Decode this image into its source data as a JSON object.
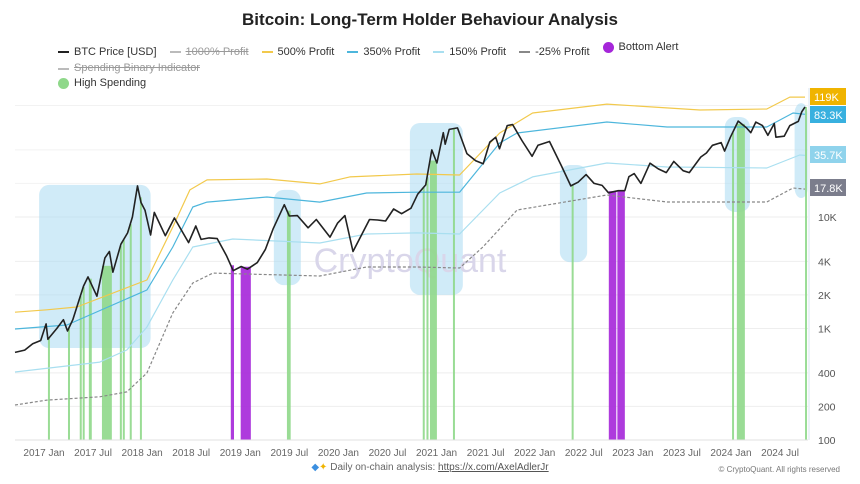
{
  "chart_data": {
    "type": "line",
    "title": "Bitcoin: Long-Term Holder Behaviour Analysis",
    "y_scale": "log",
    "ylim": [
      100,
      130000
    ],
    "xlim": [
      "2016-09-08",
      "2024-11-30"
    ],
    "grid": true,
    "legend_position": "top",
    "y_ticks": [
      {
        "v": 100,
        "label": "100"
      },
      {
        "v": 200,
        "label": "200"
      },
      {
        "v": 400,
        "label": "400"
      },
      {
        "v": 1000,
        "label": "1K"
      },
      {
        "v": 2000,
        "label": "2K"
      },
      {
        "v": 4000,
        "label": "4K"
      },
      {
        "v": 10000,
        "label": "10K"
      }
    ],
    "x_ticks": [
      "2017 Jan",
      "2017 Jul",
      "2018 Jan",
      "2018 Jul",
      "2019 Jan",
      "2019 Jul",
      "2020 Jan",
      "2020 Jul",
      "2021 Jan",
      "2021 Jul",
      "2022 Jan",
      "2022 Jul",
      "2023 Jan",
      "2023 Jul",
      "2024 Jan",
      "2024 Jul"
    ],
    "legend": [
      {
        "name": "BTC Price [USD]",
        "kind": "line",
        "color": "#222222",
        "hidden": false
      },
      {
        "name": "1000% Profit",
        "kind": "line",
        "color": "#bbbbbb",
        "hidden": true
      },
      {
        "name": "500% Profit",
        "kind": "line",
        "color": "#f2c94c",
        "hidden": false
      },
      {
        "name": "350% Profit",
        "kind": "line",
        "color": "#4db6dc",
        "hidden": false
      },
      {
        "name": "150% Profit",
        "kind": "line",
        "color": "#a9dff0",
        "hidden": false
      },
      {
        "name": "-25% Profit",
        "kind": "dash",
        "color": "#888888",
        "hidden": false
      },
      {
        "name": "Bottom Alert",
        "kind": "dot",
        "color": "#a526d9",
        "hidden": false
      },
      {
        "name": "Spending Binary Indicator",
        "kind": "line",
        "color": "#bbbbbb",
        "hidden": true
      },
      {
        "name": "High Spending",
        "kind": "dot",
        "color": "#8fd88a",
        "hidden": false
      }
    ],
    "series": [
      {
        "name": "BTC Price [USD]",
        "color": "#222222",
        "points": [
          [
            "2016-09-08",
            610
          ],
          [
            "2016-10-15",
            640
          ],
          [
            "2016-11-15",
            730
          ],
          [
            "2016-12-15",
            780
          ],
          [
            "2017-01-05",
            1100
          ],
          [
            "2017-01-12",
            800
          ],
          [
            "2017-02-15",
            1000
          ],
          [
            "2017-03-10",
            1200
          ],
          [
            "2017-03-25",
            950
          ],
          [
            "2017-04-15",
            1200
          ],
          [
            "2017-05-25",
            2400
          ],
          [
            "2017-06-12",
            2900
          ],
          [
            "2017-07-15",
            1950
          ],
          [
            "2017-08-15",
            4300
          ],
          [
            "2017-09-02",
            4900
          ],
          [
            "2017-09-15",
            3200
          ],
          [
            "2017-10-15",
            5700
          ],
          [
            "2017-11-10",
            7200
          ],
          [
            "2017-11-28",
            10000
          ],
          [
            "2017-12-17",
            19000
          ],
          [
            "2017-12-30",
            13500
          ],
          [
            "2018-01-15",
            11500
          ],
          [
            "2018-02-06",
            6900
          ],
          [
            "2018-02-20",
            11000
          ],
          [
            "2018-04-01",
            6800
          ],
          [
            "2018-05-05",
            9800
          ],
          [
            "2018-06-28",
            5900
          ],
          [
            "2018-07-25",
            8300
          ],
          [
            "2018-08-15",
            6300
          ],
          [
            "2018-09-15",
            6500
          ],
          [
            "2018-10-15",
            6400
          ],
          [
            "2018-11-20",
            4500
          ],
          [
            "2018-12-15",
            3300
          ],
          [
            "2019-01-15",
            3600
          ],
          [
            "2019-02-08",
            3400
          ],
          [
            "2019-03-15",
            3900
          ],
          [
            "2019-04-15",
            5100
          ],
          [
            "2019-05-15",
            7900
          ],
          [
            "2019-06-26",
            12900
          ],
          [
            "2019-07-15",
            10200
          ],
          [
            "2019-08-15",
            10300
          ],
          [
            "2019-09-25",
            8000
          ],
          [
            "2019-10-26",
            9500
          ],
          [
            "2019-12-17",
            6600
          ],
          [
            "2020-01-15",
            8800
          ],
          [
            "2020-02-13",
            10300
          ],
          [
            "2020-03-13",
            4900
          ],
          [
            "2020-04-15",
            6900
          ],
          [
            "2020-05-15",
            9500
          ],
          [
            "2020-06-15",
            9400
          ],
          [
            "2020-07-15",
            9200
          ],
          [
            "2020-08-15",
            11800
          ],
          [
            "2020-09-15",
            10700
          ],
          [
            "2020-10-20",
            12000
          ],
          [
            "2020-11-15",
            16000
          ],
          [
            "2020-12-15",
            19400
          ],
          [
            "2021-01-08",
            40000
          ],
          [
            "2021-01-27",
            30500
          ],
          [
            "2021-02-21",
            57000
          ],
          [
            "2021-02-28",
            45000
          ],
          [
            "2021-03-13",
            61000
          ],
          [
            "2021-04-14",
            63000
          ],
          [
            "2021-05-19",
            37000
          ],
          [
            "2021-06-22",
            32000
          ],
          [
            "2021-07-20",
            30000
          ],
          [
            "2021-08-15",
            47000
          ],
          [
            "2021-09-07",
            52000
          ],
          [
            "2021-09-21",
            41000
          ],
          [
            "2021-10-20",
            66000
          ],
          [
            "2021-11-10",
            67500
          ],
          [
            "2021-12-15",
            48500
          ],
          [
            "2022-01-23",
            35000
          ],
          [
            "2022-02-15",
            44000
          ],
          [
            "2022-03-28",
            47500
          ],
          [
            "2022-05-12",
            29000
          ],
          [
            "2022-06-18",
            19000
          ],
          [
            "2022-07-15",
            20500
          ],
          [
            "2022-08-15",
            24000
          ],
          [
            "2022-09-15",
            20000
          ],
          [
            "2022-10-15",
            19200
          ],
          [
            "2022-11-09",
            16500
          ],
          [
            "2022-12-15",
            17200
          ],
          [
            "2023-01-10",
            17200
          ],
          [
            "2023-01-25",
            23000
          ],
          [
            "2023-02-15",
            24500
          ],
          [
            "2023-03-10",
            20000
          ],
          [
            "2023-04-14",
            30400
          ],
          [
            "2023-05-15",
            27000
          ],
          [
            "2023-06-15",
            25000
          ],
          [
            "2023-07-13",
            31500
          ],
          [
            "2023-08-18",
            26000
          ],
          [
            "2023-09-11",
            25000
          ],
          [
            "2023-10-24",
            34500
          ],
          [
            "2023-11-15",
            37500
          ],
          [
            "2023-12-08",
            44000
          ],
          [
            "2024-01-10",
            46500
          ],
          [
            "2024-01-23",
            39000
          ],
          [
            "2024-02-15",
            52000
          ],
          [
            "2024-03-14",
            72500
          ],
          [
            "2024-04-15",
            63000
          ],
          [
            "2024-05-01",
            57000
          ],
          [
            "2024-05-20",
            71000
          ],
          [
            "2024-06-15",
            66000
          ],
          [
            "2024-07-05",
            54000
          ],
          [
            "2024-07-29",
            69000
          ],
          [
            "2024-08-05",
            52000
          ],
          [
            "2024-09-06",
            53000
          ],
          [
            "2024-09-27",
            66000
          ],
          [
            "2024-10-29",
            72000
          ],
          [
            "2024-11-12",
            88000
          ],
          [
            "2024-11-24",
            97000
          ]
        ]
      },
      {
        "name": "500% Profit",
        "color": "#f2c94c",
        "last_label": "119K",
        "points": [
          [
            "2016-09-08",
            1400
          ],
          [
            "2017-01-08",
            1470
          ],
          [
            "2017-04-30",
            1560
          ],
          [
            "2018-01-22",
            2720
          ],
          [
            "2018-04-29",
            8130
          ],
          [
            "2018-07-03",
            17500
          ],
          [
            "2018-09-07",
            21500
          ],
          [
            "2019-04-21",
            21900
          ],
          [
            "2019-11-09",
            19800
          ],
          [
            "2020-03-01",
            22900
          ],
          [
            "2020-11-12",
            24300
          ],
          [
            "2021-04-22",
            23800
          ],
          [
            "2021-09-22",
            56700
          ],
          [
            "2022-01-25",
            85700
          ],
          [
            "2022-11-03",
            103000
          ],
          [
            "2023-10-21",
            91200
          ],
          [
            "2024-07-01",
            93100
          ],
          [
            "2024-09-27",
            119000
          ],
          [
            "2024-11-24",
            119000
          ]
        ]
      },
      {
        "name": "350% Profit",
        "color": "#4db6dc",
        "last_label": "83.3K",
        "points": [
          [
            "2016-09-08",
            990
          ],
          [
            "2017-03-23",
            1075
          ],
          [
            "2018-01-22",
            2215
          ],
          [
            "2018-04-29",
            5380
          ],
          [
            "2018-07-14",
            12300
          ],
          [
            "2018-09-07",
            13600
          ],
          [
            "2019-04-21",
            15100
          ],
          [
            "2019-11-09",
            13600
          ],
          [
            "2020-05-04",
            16400
          ],
          [
            "2020-11-12",
            16700
          ],
          [
            "2021-04-22",
            16700
          ],
          [
            "2021-09-22",
            46100
          ],
          [
            "2021-11-27",
            56700
          ],
          [
            "2022-11-03",
            71100
          ],
          [
            "2023-06-18",
            64100
          ],
          [
            "2024-07-01",
            64100
          ],
          [
            "2024-10-09",
            85700
          ],
          [
            "2024-11-24",
            83300
          ]
        ]
      },
      {
        "name": "150% Profit",
        "color": "#a9dff0",
        "last_label": "35.7K",
        "points": [
          [
            "2016-09-08",
            407
          ],
          [
            "2017-07-26",
            500
          ],
          [
            "2017-11-07",
            641
          ],
          [
            "2018-01-22",
            1030
          ],
          [
            "2018-04-29",
            2720
          ],
          [
            "2018-07-14",
            5380
          ],
          [
            "2018-12-13",
            6350
          ],
          [
            "2019-11-09",
            5840
          ],
          [
            "2020-05-04",
            7040
          ],
          [
            "2020-11-12",
            7200
          ],
          [
            "2021-04-22",
            7040
          ],
          [
            "2021-09-22",
            16400
          ],
          [
            "2022-01-25",
            22900
          ],
          [
            "2022-11-03",
            30500
          ],
          [
            "2023-06-18",
            28100
          ],
          [
            "2024-07-01",
            27500
          ],
          [
            "2024-11-04",
            36000
          ],
          [
            "2024-11-24",
            35700
          ]
        ]
      },
      {
        "name": "-25% Profit",
        "color": "#888888",
        "dashed": true,
        "last_label": "17.8K",
        "points": [
          [
            "2016-09-08",
            206
          ],
          [
            "2017-01-08",
            228
          ],
          [
            "2017-07-26",
            244
          ],
          [
            "2017-11-07",
            270
          ],
          [
            "2018-01-22",
            399
          ],
          [
            "2018-04-29",
            1380
          ],
          [
            "2018-07-14",
            2560
          ],
          [
            "2018-09-29",
            3140
          ],
          [
            "2019-11-09",
            2960
          ],
          [
            "2020-05-04",
            3560
          ],
          [
            "2020-11-12",
            3560
          ],
          [
            "2021-04-22",
            3490
          ],
          [
            "2021-07-19",
            5380
          ],
          [
            "2021-11-27",
            11550
          ],
          [
            "2022-11-03",
            15750
          ],
          [
            "2023-06-18",
            13640
          ],
          [
            "2024-07-01",
            13640
          ],
          [
            "2024-10-09",
            18200
          ],
          [
            "2024-11-24",
            17800
          ]
        ]
      }
    ],
    "last_value_tags": [
      {
        "label": "119K",
        "color": "#f0b400"
      },
      {
        "label": "83.3K",
        "color": "#38b0df"
      },
      {
        "label": "35.7K",
        "color": "#8fd3ec"
      },
      {
        "label": "17.8K",
        "color": "#7b7d8c"
      }
    ],
    "high_spending": [
      [
        "2017-01-12",
        "2017-01-14"
      ],
      [
        "2017-03-27",
        "2017-03-29"
      ],
      [
        "2017-05-11",
        "2017-05-13"
      ],
      [
        "2017-05-22",
        "2017-05-24"
      ],
      [
        "2017-06-15",
        "2017-06-26"
      ],
      [
        "2017-08-04",
        "2017-09-11"
      ],
      [
        "2017-10-11",
        "2017-10-13"
      ],
      [
        "2017-10-22",
        "2017-10-24"
      ],
      [
        "2017-11-18",
        "2017-11-20"
      ],
      [
        "2017-12-26",
        "2017-12-28"
      ],
      [
        "2019-07-06",
        "2019-07-20"
      ],
      [
        "2020-12-04",
        "2020-12-06"
      ],
      [
        "2020-12-18",
        "2020-12-20"
      ],
      [
        "2021-01-01",
        "2021-01-27"
      ],
      [
        "2021-03-27",
        "2021-03-31"
      ],
      [
        "2022-06-21",
        "2022-06-23"
      ],
      [
        "2024-02-21",
        "2024-02-23"
      ],
      [
        "2024-03-09",
        "2024-04-09"
      ],
      [
        "2024-11-24",
        "2024-11-27"
      ]
    ],
    "bottom_alert": [
      [
        "2018-12-06",
        "2018-12-18"
      ],
      [
        "2019-01-13",
        "2019-02-21"
      ],
      [
        "2022-11-10",
        "2022-12-08"
      ],
      [
        "2022-12-12",
        "2023-01-10"
      ]
    ],
    "highlight_regions": [
      {
        "from": "2016-12-09",
        "to": "2018-02-06",
        "low": 668,
        "high": 19400
      },
      {
        "from": "2019-05-17",
        "to": "2019-08-28",
        "low": 2450,
        "high": 17500
      },
      {
        "from": "2020-10-16",
        "to": "2021-05-04",
        "low": 2000,
        "high": 69700
      },
      {
        "from": "2022-05-07",
        "to": "2022-08-19",
        "low": 3940,
        "high": 29300
      },
      {
        "from": "2024-01-24",
        "to": "2024-04-28",
        "low": 11100,
        "high": 78900
      },
      {
        "from": "2024-10-15",
        "to": "2024-12-04",
        "low": 14800,
        "high": 105000
      }
    ],
    "watermark": "CryptoQuant"
  },
  "footer": {
    "text": "Daily on-chain analysis: ",
    "link": "https://x.com/AxelAdlerJr",
    "copyright": "© CryptoQuant. All rights reserved"
  }
}
